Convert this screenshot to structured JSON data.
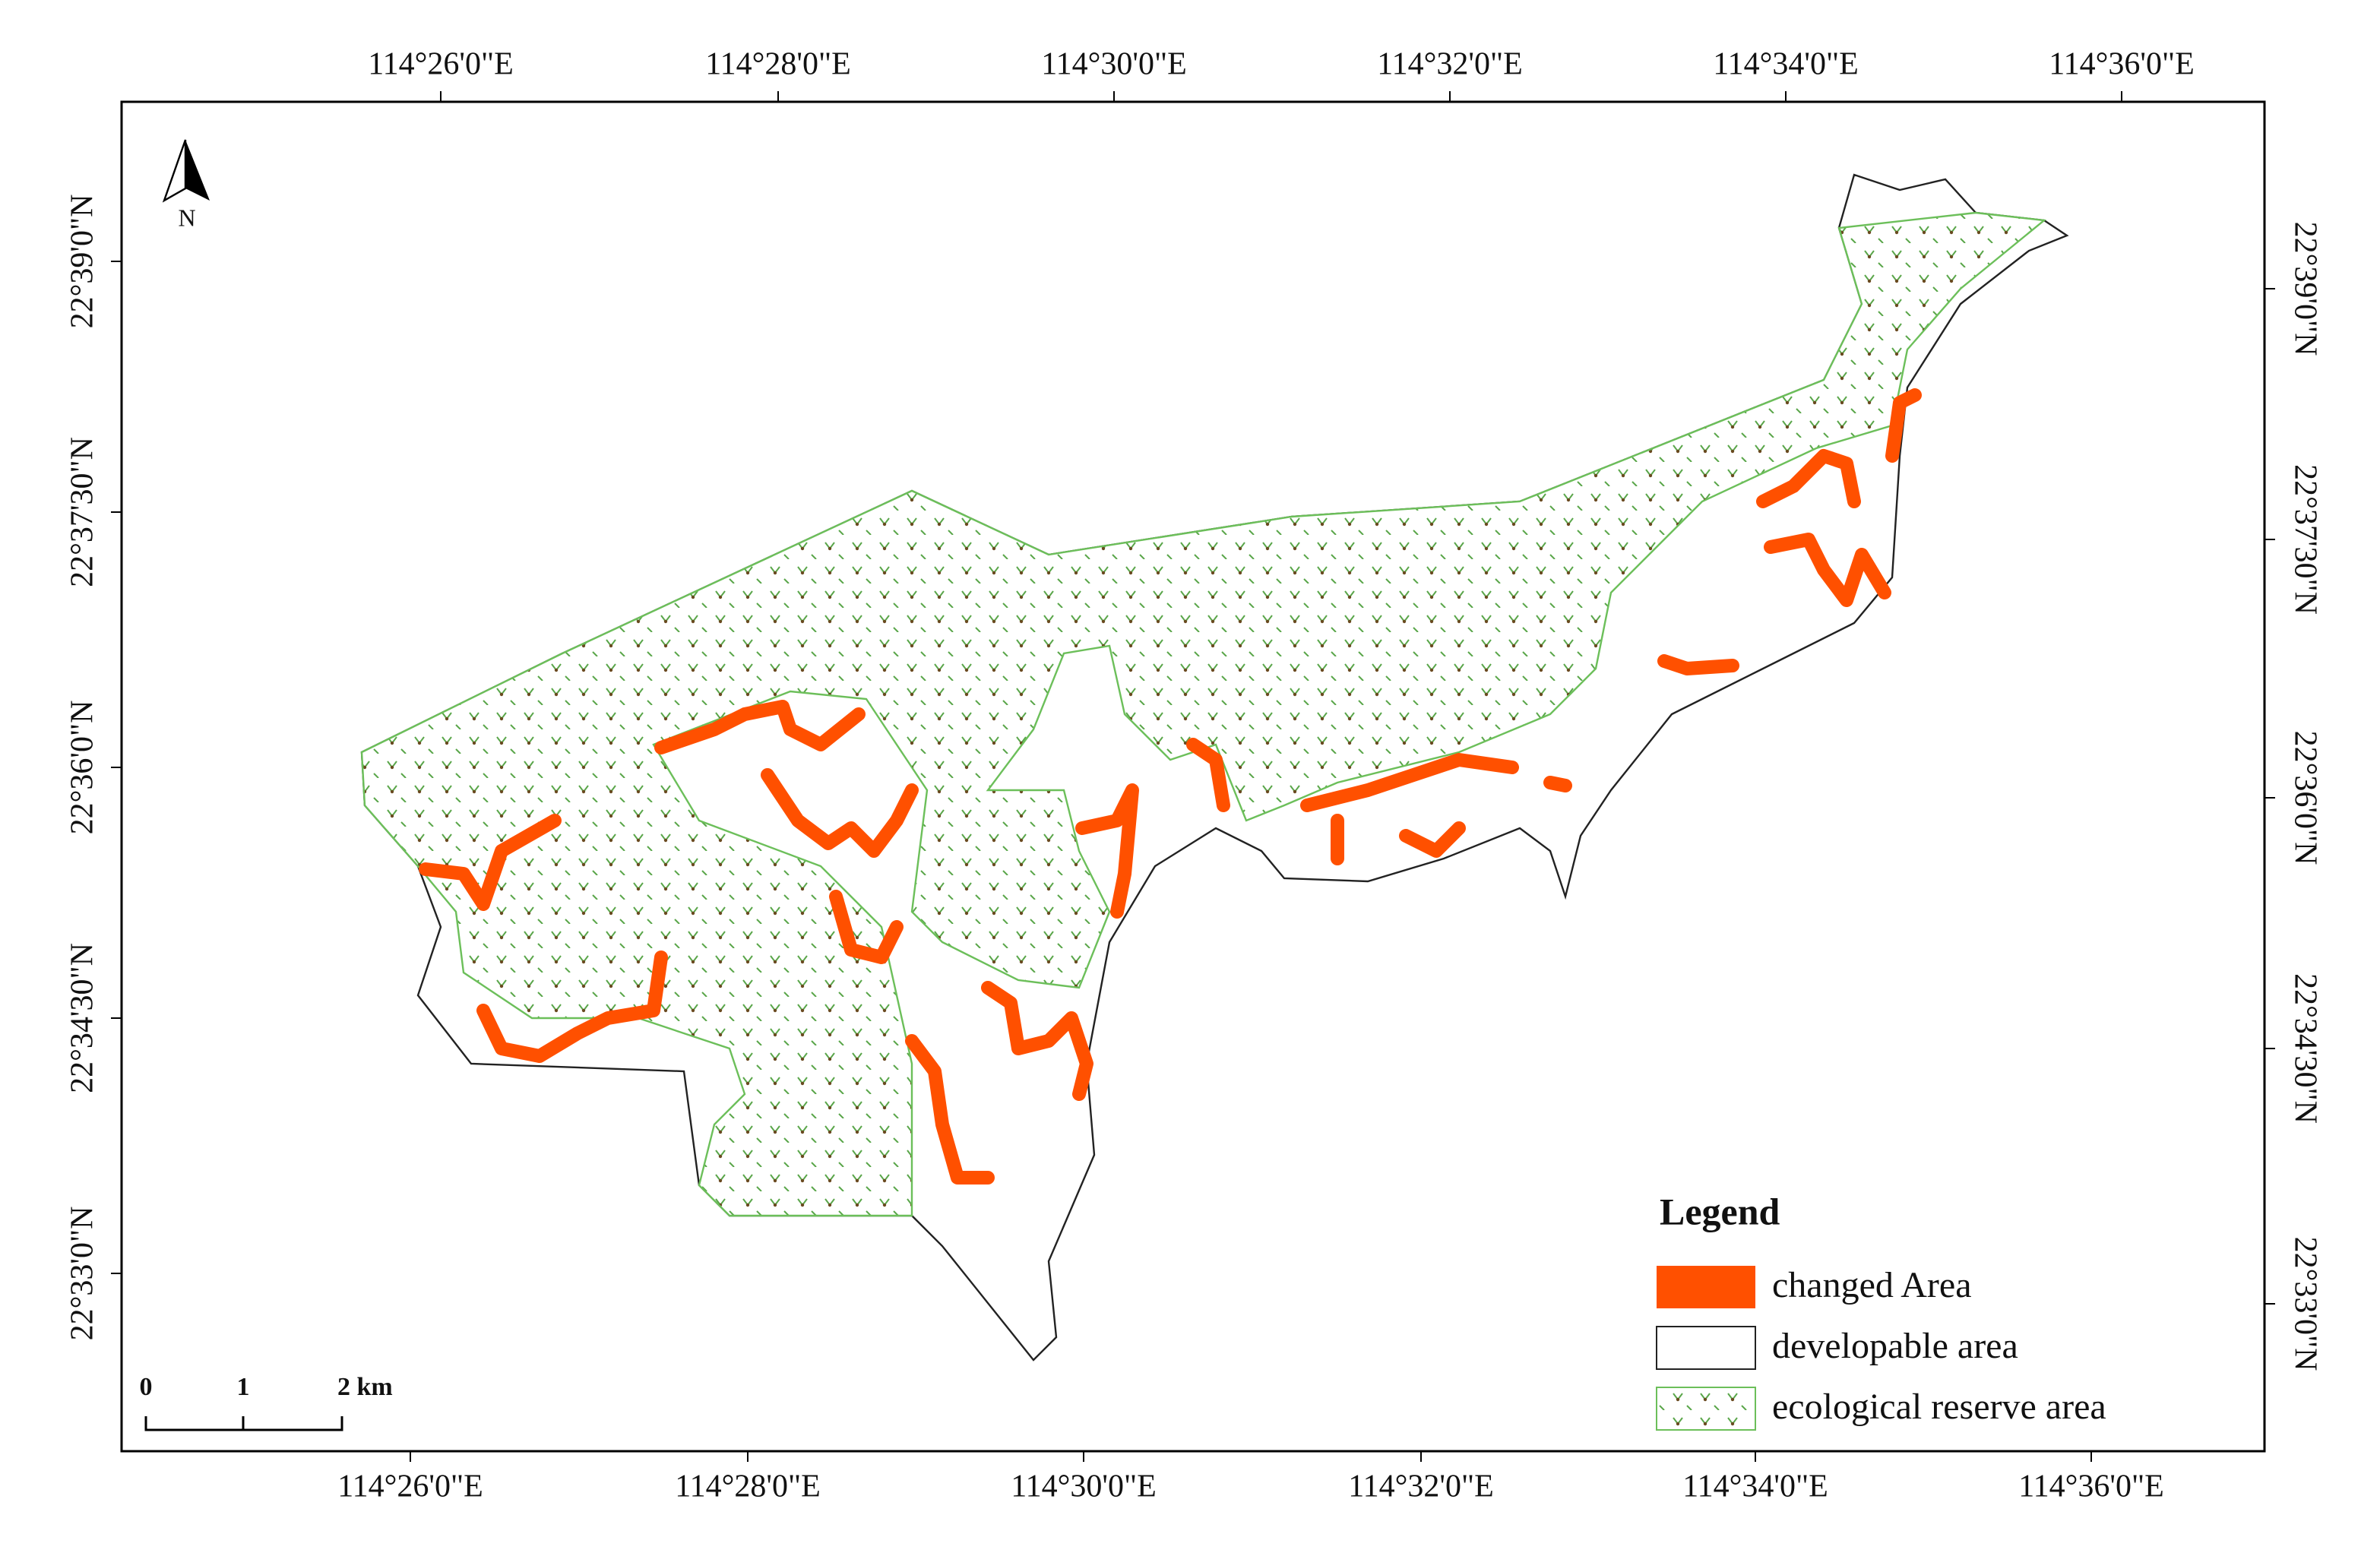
{
  "map": {
    "top_labels": [
      "114°26'0\"E",
      "114°28'0\"E",
      "114°30'0\"E",
      "114°32'0\"E",
      "114°34'0\"E",
      "114°36'0\"E"
    ],
    "bottom_labels": [
      "114°26'0\"E",
      "114°28'0\"E",
      "114°30'0\"E",
      "114°32'0\"E",
      "114°34'0\"E",
      "114°36'0\"E"
    ],
    "left_labels": [
      "22°39'0\"N",
      "22°37'30\"N",
      "22°36'0\"N",
      "22°34'30\"N",
      "22°33'0\"N"
    ],
    "right_labels": [
      "22°39'0\"N",
      "22°37'30\"N",
      "22°36'0\"N",
      "22°34'30\"N",
      "22°33'0\"N"
    ],
    "north": "N",
    "scale_labels": [
      "0",
      "1",
      "2 km"
    ],
    "legend": {
      "title": "Legend",
      "items": [
        "changed Area",
        "developable area",
        "ecological reserve area"
      ]
    }
  }
}
